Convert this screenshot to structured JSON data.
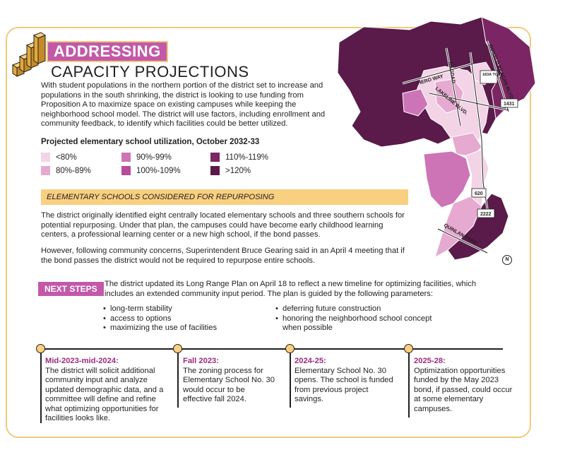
{
  "header": {
    "badge": "ADDRESSING",
    "subtitle": "CAPACITY PROJECTIONS"
  },
  "intro": "With student populations in the northern portion of the district set to increase and populations in the south shrinking, the district is looking to use funding from Proposition A to maximize space on existing campuses while keeping the neighborhood school model. The district will use factors, including enrollment and community feedback, to identify which facilities could be better utilized.",
  "legend": {
    "title": "Projected elementary school utilization, October 2032-33",
    "items": [
      {
        "label": "<80%",
        "color": "#f3d3e6"
      },
      {
        "label": "80%-89%",
        "color": "#e6a9d0"
      },
      {
        "label": "90%-99%",
        "color": "#cd74b6"
      },
      {
        "label": "100%-109%",
        "color": "#b94a9c"
      },
      {
        "label": "110%-119%",
        "color": "#7b2564"
      },
      {
        "label": ">120%",
        "color": "#5a1a4a"
      }
    ]
  },
  "repurposing": {
    "heading": "ELEMENTARY SCHOOLS CONSIDERED FOR REPURPOSING",
    "para1": "The district originally identified eight centrally located elementary schools and three southern schools for potential repurposing. Under that plan, the campuses could have become early childhood learning centers, a professional learning center or a new high school, if the bond passes.",
    "para2": "However, following community concerns, Superintendent Bruce Gearing said in an April 4 meeting that if the bond passes the district would not be required to repurpose entire schools."
  },
  "next_steps": {
    "badge": "NEXT STEPS",
    "text": "The district updated its Long Range Plan on April 18 to reflect a new timeline for optimizing facilities, which includes an extended community input period. The plan is guided by the following parameters:",
    "params_left": [
      "long-term stability",
      "access to options",
      "maximizing the use of facilities"
    ],
    "params_right": [
      "deferring future construction",
      "honoring the neighborhood school concept when possible"
    ]
  },
  "timeline": [
    {
      "label": "Mid-2023-mid-2024:",
      "text": "The district will solicit additional community input and analyze updated demographic data, and a committee will define and refine what optimizing opportunities for facilities looks like."
    },
    {
      "label": "Fall 2023:",
      "text": "The zoning process for Elementary School No. 30 would occur to be effective fall 2024."
    },
    {
      "label": "2024-25:",
      "text": "Elementary School No. 30 opens. The school is funded from previous project savings."
    },
    {
      "label": "2025-28:",
      "text": "Optimization opportunities funded by the May 2023 bond, if passed,  could occur at some elementary campuses."
    }
  ],
  "map": {
    "roads": [
      "HERO WAY",
      "RONALD REAGAN BLVD.",
      "BAGDAD",
      "LAKELINE BLVD.",
      "QUINLAN PARK"
    ],
    "shields": [
      "183A TOLL",
      "1431",
      "620",
      "2222"
    ],
    "north": "N"
  },
  "colors": {
    "accent": "#c259a8",
    "highlight": "#f9cf80",
    "frame": "#f2c97a",
    "label": "#9b2a7e"
  }
}
